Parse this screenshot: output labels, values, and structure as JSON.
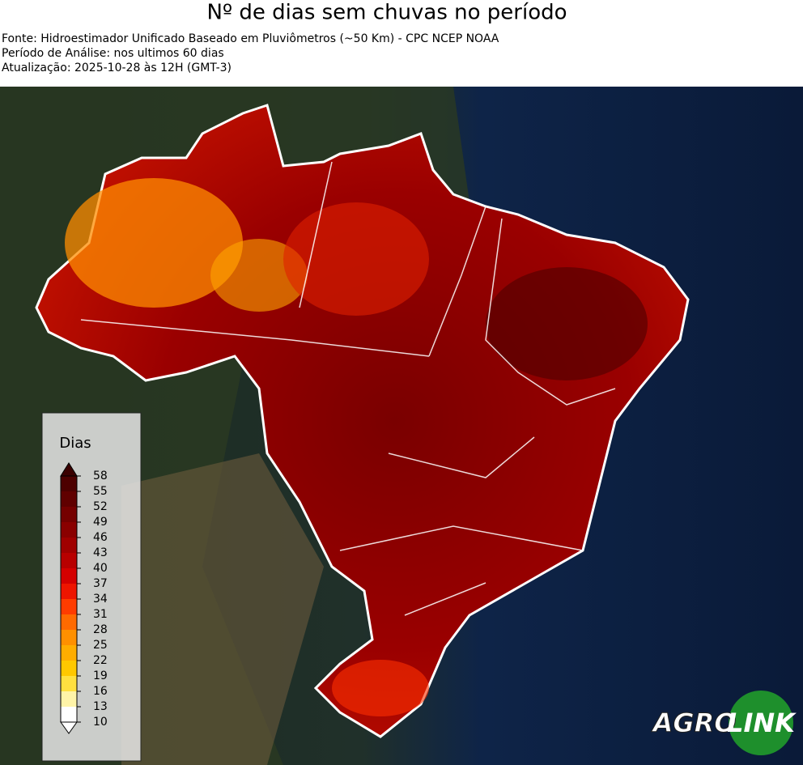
{
  "header": {
    "title": "Nº de dias sem chuvas no período",
    "lines": [
      "Fonte: Hidroestimador Unificado Baseado em Pluviômetros (~50 Km) - CPC NCEP NOAA",
      "Período de Análise: nos ultimos 60 dias",
      "Atualização: 2025-10-28 às 12H (GMT-3)"
    ]
  },
  "legend": {
    "title": "Dias",
    "ticks": [
      58,
      55,
      52,
      49,
      46,
      43,
      40,
      37,
      34,
      31,
      28,
      25,
      22,
      19,
      16,
      13,
      10
    ],
    "colors": [
      "#4d0000",
      "#600000",
      "#750000",
      "#8a0000",
      "#a00000",
      "#b80000",
      "#d40000",
      "#ee1500",
      "#ff3c00",
      "#ff6a00",
      "#ff9000",
      "#ffad00",
      "#ffc800",
      "#ffe040",
      "#fff4a8",
      "#ffffff"
    ],
    "over_color": "#3a0000",
    "under_color": "#ffffff"
  },
  "logo": {
    "left": "AGRO",
    "right": "LINK"
  }
}
